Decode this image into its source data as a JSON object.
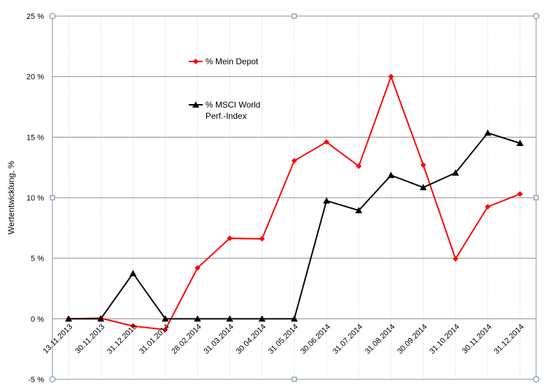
{
  "chart_data": {
    "type": "line",
    "y_label": "Wertentwicklung, %",
    "categories": [
      "13.11.2013",
      "30.11.2013",
      "31.12.2013",
      "31.01.2014",
      "28.02.2014",
      "31.03.2014",
      "30.04.2014",
      "31.05.2014",
      "30.06.2014",
      "31.07.2014",
      "31.08.2014",
      "30.09.2014",
      "31.10.2014",
      "30.11.2014",
      "31.12.2014"
    ],
    "series": [
      {
        "name": "% Mein Depot",
        "color": "#ff0000",
        "marker": "diamond",
        "values": [
          0,
          0.05,
          -0.6,
          -0.9,
          4.2,
          6.65,
          6.6,
          13.05,
          14.6,
          12.6,
          20.0,
          12.7,
          4.95,
          9.25,
          10.3
        ]
      },
      {
        "name": "% MSCI World Perf.-Index",
        "color": "#000000",
        "marker": "triangle",
        "values": [
          0,
          0,
          3.75,
          0,
          0,
          0,
          0,
          0,
          9.75,
          8.95,
          11.85,
          10.85,
          12.05,
          15.35,
          14.5
        ]
      }
    ],
    "ylim": [
      -5,
      25
    ],
    "yticks": [
      {
        "value": -5,
        "label": "-5 %"
      },
      {
        "value": 0,
        "label": "0 %"
      },
      {
        "value": 5,
        "label": "5 %"
      },
      {
        "value": 10,
        "label": "10 %"
      },
      {
        "value": 15,
        "label": "15 %"
      },
      {
        "value": 20,
        "label": "20 %"
      },
      {
        "value": 25,
        "label": "25 %"
      }
    ],
    "grid": true
  }
}
